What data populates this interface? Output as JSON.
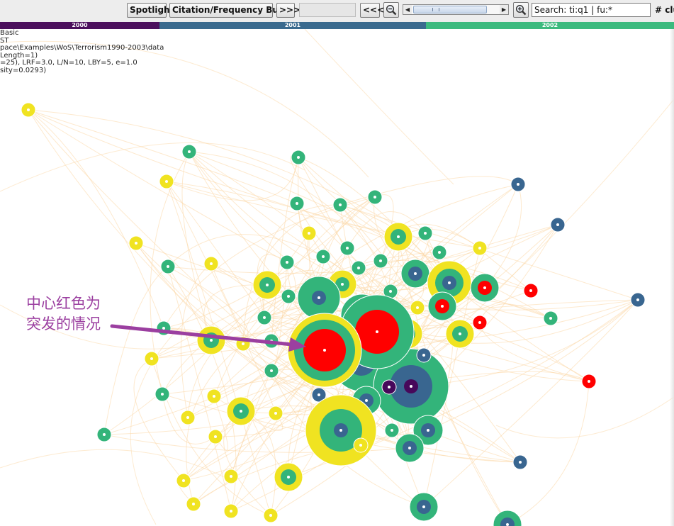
{
  "toolbar": {
    "spotlight_label": "Spotlight",
    "burst_label": "Citation/Frequency Burst",
    "forward_label": ">>>",
    "back_label": "<<<",
    "zoom_out_icon": "zoom-out-icon",
    "zoom_in_icon": "zoom-in-icon",
    "search_value": "Search: ti:q1 | fu:*",
    "cluster_label": "# clu"
  },
  "timeline": [
    {
      "label": "2000",
      "color": "#4b0f5c"
    },
    {
      "label": "2001",
      "color": "#3a6a8e"
    },
    {
      "label": "2002",
      "color": "#3cba7e"
    }
  ],
  "info_lines": [
    "Basic",
    "ST",
    "pace\\Examples\\WoS\\Terrorism1990-2003\\data",
    "Length=1)",
    "=25), LRF=3.0, L/N=10, LBY=5, e=1.0",
    "sity=0.0293)"
  ],
  "annotation": {
    "line1": "中心红色为",
    "line2": "突发的情况",
    "color": "#9b3fa0"
  },
  "colors": {
    "burst": "#ff0000",
    "year_2003": "#f0e321",
    "year_2002": "#33b47a",
    "year_2001": "#396690",
    "year_2000": "#47085a",
    "links": "#fbd7a6"
  }
}
